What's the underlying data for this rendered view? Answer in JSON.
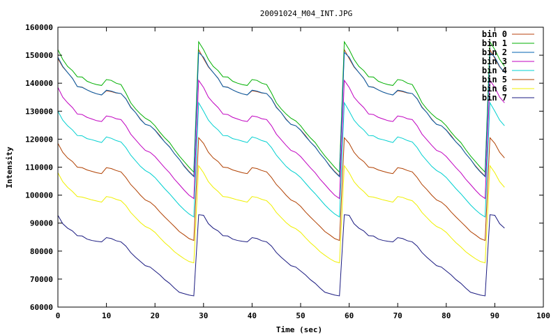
{
  "chart_data": {
    "type": "line",
    "title": "20091024_M04_INT.JPG",
    "xlabel": "Time (sec)",
    "ylabel": "Intensity",
    "xlim": [
      0,
      100
    ],
    "ylim": [
      60000,
      160000
    ],
    "xticks": [
      0,
      10,
      20,
      30,
      40,
      50,
      60,
      70,
      80,
      90,
      100
    ],
    "yticks": [
      60000,
      70000,
      80000,
      90000,
      100000,
      110000,
      120000,
      130000,
      140000,
      150000,
      160000
    ],
    "grid": false,
    "legend_position": "top-right",
    "cycle_x": [
      0,
      1,
      2,
      3,
      4,
      5,
      6,
      7,
      8,
      9,
      10,
      11,
      12,
      13,
      14,
      15,
      16,
      17,
      18,
      19,
      20,
      21,
      22,
      23,
      24,
      25,
      26,
      27,
      28,
      29
    ],
    "cycle_starts": [
      0,
      30,
      60,
      90
    ],
    "x_end": 92,
    "series": [
      {
        "name": "bin 0",
        "color": "#b8400e",
        "values": [
          148800,
          145800,
          143800,
          141800,
          138800,
          138600,
          137600,
          136800,
          136200,
          135800,
          137300,
          137000,
          136500,
          136300,
          134500,
          131500,
          129500,
          127200,
          125300,
          124800,
          123300,
          121300,
          119000,
          117300,
          114800,
          112800,
          110500,
          108500,
          106800,
          152000
        ]
      },
      {
        "name": "bin 1",
        "color": "#00b000",
        "values": [
          152000,
          148500,
          146000,
          144500,
          142300,
          142200,
          140700,
          140000,
          139500,
          139200,
          141300,
          141000,
          140000,
          139500,
          136500,
          133000,
          130800,
          129000,
          127500,
          126500,
          124800,
          122500,
          120500,
          118800,
          116300,
          114000,
          112000,
          110000,
          108200,
          154800
        ]
      },
      {
        "name": "bin 2",
        "color": "#0060b0",
        "values": [
          149300,
          146000,
          143800,
          141700,
          138800,
          138500,
          137600,
          136800,
          136200,
          135800,
          137500,
          137200,
          136600,
          136300,
          134400,
          131300,
          129500,
          127000,
          125300,
          124800,
          123200,
          121000,
          119000,
          117200,
          114800,
          112800,
          110300,
          108300,
          106600,
          151000
        ]
      },
      {
        "name": "bin 3",
        "color": "#c000c0",
        "values": [
          138500,
          135000,
          133000,
          131300,
          129000,
          128800,
          127800,
          127200,
          126600,
          126300,
          128300,
          128000,
          127300,
          127000,
          124800,
          121800,
          119800,
          117800,
          116000,
          115300,
          113800,
          111800,
          109800,
          108000,
          105700,
          103800,
          101800,
          100000,
          98800,
          141000
        ]
      },
      {
        "name": "bin 4",
        "color": "#00d0d0",
        "values": [
          130000,
          126800,
          124800,
          123300,
          121300,
          121200,
          120200,
          119800,
          119300,
          118800,
          120800,
          120300,
          119500,
          119000,
          117000,
          114300,
          112300,
          110300,
          108800,
          107800,
          106300,
          104300,
          102300,
          100500,
          98500,
          96500,
          94800,
          93300,
          92200,
          133000
        ]
      },
      {
        "name": "bin 5",
        "color": "#b04000",
        "values": [
          118500,
          115300,
          113300,
          112000,
          110000,
          109800,
          109000,
          108500,
          108000,
          107700,
          109800,
          109500,
          108800,
          108300,
          106300,
          103800,
          102000,
          100000,
          98300,
          97500,
          96000,
          94000,
          92200,
          90500,
          88800,
          87000,
          85800,
          84500,
          83800,
          120500
        ]
      },
      {
        "name": "bin 6",
        "color": "#f0f000",
        "values": [
          108000,
          104800,
          102800,
          101300,
          99500,
          99300,
          98800,
          98300,
          97900,
          97500,
          99500,
          99200,
          98500,
          98000,
          96300,
          93800,
          92000,
          90200,
          88800,
          88000,
          86700,
          84800,
          83000,
          81500,
          79800,
          78500,
          77300,
          76300,
          75800,
          110500
        ]
      },
      {
        "name": "bin 7",
        "color": "#1a1a80",
        "values": [
          92800,
          89800,
          88200,
          87200,
          85500,
          85400,
          84300,
          83800,
          83500,
          83300,
          84800,
          84500,
          83700,
          83300,
          81800,
          79500,
          77800,
          76300,
          74800,
          74300,
          72900,
          71500,
          69800,
          68500,
          66800,
          65300,
          64800,
          64300,
          64000,
          93000
        ]
      }
    ]
  }
}
